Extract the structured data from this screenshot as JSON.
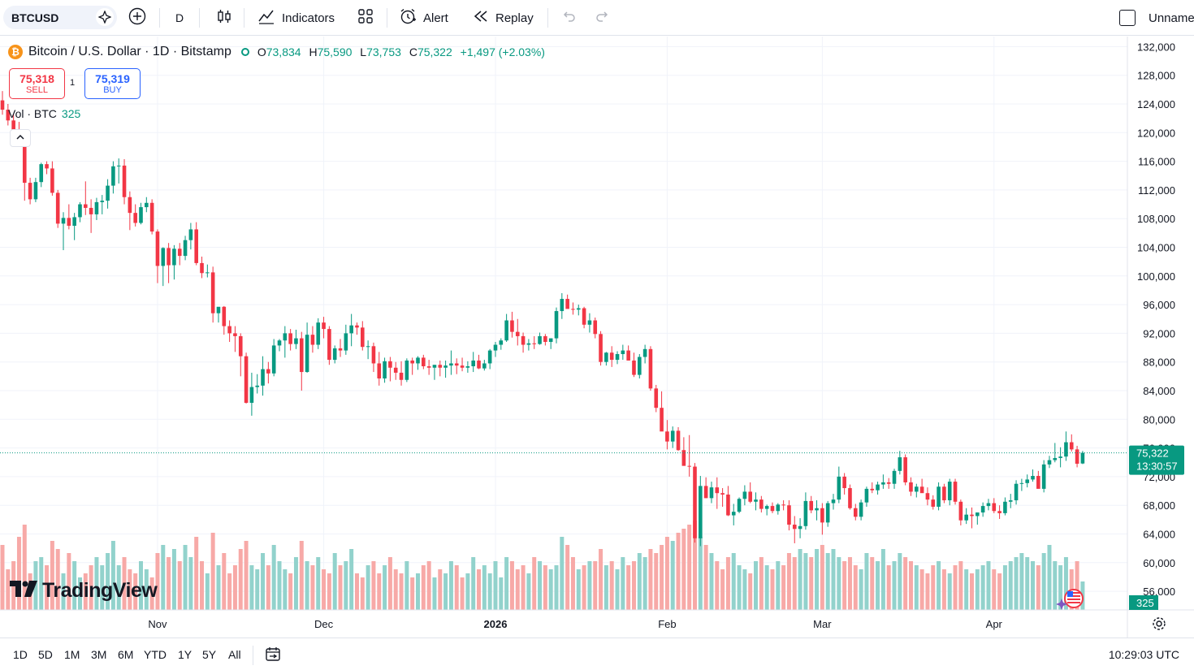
{
  "toolbar": {
    "symbol": "BTCUSD",
    "interval": "D",
    "indicators": "Indicators",
    "alert": "Alert",
    "replay": "Replay",
    "layout_name": "Unname"
  },
  "legend": {
    "title": "Bitcoin / U.S. Dollar · 1D · Bitstamp",
    "o_label": "O",
    "o": "73,834",
    "h_label": "H",
    "h": "75,590",
    "l_label": "L",
    "l": "73,753",
    "c_label": "C",
    "c": "75,322",
    "change": "+1,497 (+2.03%)"
  },
  "trade": {
    "sell_price": "75,318",
    "sell_label": "SELL",
    "spread": "1",
    "buy_price": "75,319",
    "buy_label": "BUY"
  },
  "volume_legend": {
    "label": "Vol · BTC",
    "value": "325"
  },
  "logo_text": "TradingView",
  "price_tag": {
    "price": "75,322",
    "countdown": "13:30:57"
  },
  "volume_tag": "325",
  "bottom": {
    "ranges": [
      "1D",
      "5D",
      "1M",
      "3M",
      "6M",
      "YTD",
      "1Y",
      "5Y",
      "All"
    ],
    "clock": "10:29:03 UTC"
  },
  "colors": {
    "up": "#089981",
    "down": "#f23645",
    "up_vol": "#92d2cc",
    "down_vol": "#f7a9a7"
  },
  "chart_data": {
    "type": "candlestick",
    "title": "Bitcoin / U.S. Dollar · 1D · Bitstamp",
    "y_ticks": [
      132000,
      128000,
      124000,
      120000,
      116000,
      112000,
      108000,
      104000,
      100000,
      96000,
      92000,
      88000,
      84000,
      80000,
      76000,
      72000,
      68000,
      64000,
      60000,
      56000
    ],
    "y_tick_labels": [
      "132,000",
      "128,000",
      "124,000",
      "120,000",
      "116,000",
      "112,000",
      "108,000",
      "104,000",
      "100,000",
      "96,000",
      "92,000",
      "88,000",
      "84,000",
      "80,000",
      "76,000",
      "72,000",
      "68,000",
      "64,000",
      "60,000",
      "56,000"
    ],
    "ylim": [
      55000,
      133000
    ],
    "x_labels": [
      {
        "label": "Nov",
        "index": 28,
        "bold": false
      },
      {
        "label": "Dec",
        "index": 58,
        "bold": false
      },
      {
        "label": "2026",
        "index": 89,
        "bold": true
      },
      {
        "label": "Feb",
        "index": 120,
        "bold": false
      },
      {
        "label": "Mar",
        "index": 148,
        "bold": false
      },
      {
        "label": "Apr",
        "index": 179,
        "bold": false
      }
    ],
    "last_price": 75322,
    "candles": [
      [
        124500,
        125800,
        122500,
        123200,
        16
      ],
      [
        123200,
        124000,
        121000,
        121700,
        10
      ],
      [
        121700,
        122600,
        119800,
        120300,
        12
      ],
      [
        120300,
        121500,
        118400,
        119000,
        18
      ],
      [
        119000,
        119500,
        110500,
        113000,
        21
      ],
      [
        113000,
        113700,
        110000,
        110700,
        9
      ],
      [
        110700,
        113700,
        110300,
        113100,
        12
      ],
      [
        113100,
        115800,
        112400,
        115600,
        13
      ],
      [
        115600,
        116000,
        114200,
        115000,
        11
      ],
      [
        115000,
        116000,
        111200,
        111600,
        17
      ],
      [
        111600,
        112000,
        106700,
        107300,
        15
      ],
      [
        107300,
        108900,
        103600,
        108100,
        9
      ],
      [
        108100,
        110000,
        106500,
        107000,
        14
      ],
      [
        107000,
        108800,
        105000,
        108200,
        12
      ],
      [
        108200,
        110300,
        107500,
        110000,
        8
      ],
      [
        110000,
        113200,
        108500,
        109500,
        9
      ],
      [
        109500,
        110700,
        106000,
        108600,
        11
      ],
      [
        108600,
        110900,
        107800,
        110300,
        13
      ],
      [
        110300,
        111300,
        108600,
        110500,
        11
      ],
      [
        110500,
        113500,
        109400,
        112600,
        14
      ],
      [
        112600,
        116000,
        111500,
        115300,
        17
      ],
      [
        115300,
        116400,
        112900,
        115400,
        11
      ],
      [
        115400,
        116300,
        110000,
        111000,
        13
      ],
      [
        111000,
        111800,
        106400,
        108800,
        10
      ],
      [
        108800,
        110000,
        106900,
        107400,
        9
      ],
      [
        107400,
        110200,
        107200,
        109600,
        12
      ],
      [
        109600,
        111000,
        108900,
        110200,
        10
      ],
      [
        110200,
        110700,
        105800,
        106200,
        8
      ],
      [
        106200,
        106500,
        99000,
        101400,
        14
      ],
      [
        101400,
        104000,
        98600,
        103900,
        16
      ],
      [
        103900,
        104600,
        99000,
        101500,
        13
      ],
      [
        101500,
        104300,
        99500,
        103800,
        15
      ],
      [
        103800,
        104600,
        101500,
        102800,
        12
      ],
      [
        102800,
        105600,
        102200,
        105000,
        16
      ],
      [
        105000,
        107400,
        103700,
        106500,
        13
      ],
      [
        106500,
        107500,
        101500,
        101800,
        18
      ],
      [
        101800,
        102700,
        99700,
        100400,
        12
      ],
      [
        100400,
        101600,
        99800,
        100500,
        9
      ],
      [
        100500,
        101300,
        93500,
        94800,
        19
      ],
      [
        94800,
        95500,
        93500,
        95700,
        11
      ],
      [
        95700,
        95800,
        91800,
        93000,
        14
      ],
      [
        93000,
        93800,
        90800,
        92000,
        9
      ],
      [
        92000,
        93000,
        89400,
        91600,
        11
      ],
      [
        91600,
        92000,
        86000,
        88800,
        15
      ],
      [
        88800,
        89300,
        82200,
        82300,
        17
      ],
      [
        82300,
        86500,
        80500,
        84500,
        11
      ],
      [
        84500,
        86300,
        83600,
        84700,
        10
      ],
      [
        84700,
        88800,
        83300,
        87000,
        14
      ],
      [
        87000,
        88000,
        85000,
        86400,
        11
      ],
      [
        86400,
        91200,
        86000,
        90300,
        16
      ],
      [
        90300,
        91200,
        89500,
        91000,
        12
      ],
      [
        91000,
        93000,
        88600,
        92000,
        10
      ],
      [
        92000,
        92600,
        89600,
        90500,
        9
      ],
      [
        90500,
        92500,
        89800,
        91300,
        13
      ],
      [
        91300,
        92200,
        84000,
        86600,
        17
      ],
      [
        86600,
        93500,
        86500,
        91800,
        12
      ],
      [
        91800,
        93000,
        89300,
        90400,
        11
      ],
      [
        90400,
        94100,
        89800,
        93500,
        13
      ],
      [
        93500,
        94300,
        91300,
        92600,
        10
      ],
      [
        92600,
        93000,
        87600,
        88300,
        9
      ],
      [
        88300,
        90300,
        87800,
        89900,
        14
      ],
      [
        89900,
        91200,
        88700,
        89600,
        11
      ],
      [
        89600,
        93200,
        89000,
        92000,
        12
      ],
      [
        92000,
        94700,
        90200,
        93100,
        15
      ],
      [
        93100,
        93500,
        91800,
        92800,
        9
      ],
      [
        92800,
        93700,
        89600,
        90100,
        8
      ],
      [
        90100,
        91000,
        88400,
        90200,
        11
      ],
      [
        90200,
        90700,
        86600,
        87800,
        12
      ],
      [
        87800,
        89400,
        84700,
        85700,
        9
      ],
      [
        85700,
        88600,
        85100,
        88100,
        11
      ],
      [
        88100,
        88700,
        85300,
        87200,
        13
      ],
      [
        87200,
        88000,
        85500,
        86500,
        10
      ],
      [
        86500,
        88100,
        84700,
        85500,
        9
      ],
      [
        85500,
        88500,
        85200,
        88200,
        12
      ],
      [
        88200,
        88600,
        86200,
        87800,
        8
      ],
      [
        87800,
        88800,
        86900,
        88600,
        9
      ],
      [
        88600,
        89000,
        87000,
        87400,
        11
      ],
      [
        87400,
        88300,
        86200,
        87200,
        12
      ],
      [
        87200,
        87600,
        85500,
        87600,
        8
      ],
      [
        87600,
        88200,
        86000,
        87200,
        10
      ],
      [
        87200,
        88200,
        85800,
        87500,
        9
      ],
      [
        87500,
        89600,
        86200,
        87800,
        12
      ],
      [
        87800,
        88500,
        86300,
        87500,
        11
      ],
      [
        87500,
        88600,
        86700,
        87200,
        8
      ],
      [
        87200,
        88100,
        86500,
        87400,
        9
      ],
      [
        87400,
        89400,
        86600,
        88200,
        13
      ],
      [
        88200,
        89000,
        87000,
        87100,
        10
      ],
      [
        87100,
        88300,
        86800,
        87800,
        11
      ],
      [
        87800,
        89800,
        87000,
        89600,
        9
      ],
      [
        89600,
        90800,
        88700,
        90400,
        12
      ],
      [
        90400,
        91300,
        89700,
        91000,
        8
      ],
      [
        91000,
        94700,
        90800,
        93800,
        13
      ],
      [
        93800,
        95000,
        91400,
        92200,
        12
      ],
      [
        92200,
        94000,
        90300,
        91600,
        10
      ],
      [
        91600,
        92100,
        89300,
        90400,
        11
      ],
      [
        90400,
        91200,
        89600,
        90600,
        9
      ],
      [
        90600,
        91600,
        89800,
        90500,
        13
      ],
      [
        90500,
        92100,
        90400,
        91600,
        12
      ],
      [
        91600,
        91900,
        90300,
        90800,
        11
      ],
      [
        90800,
        91300,
        89800,
        91300,
        10
      ],
      [
        91300,
        95600,
        90600,
        95100,
        11
      ],
      [
        95100,
        97600,
        94000,
        96800,
        18
      ],
      [
        96800,
        97400,
        95800,
        95400,
        16
      ],
      [
        95400,
        96300,
        94600,
        95300,
        13
      ],
      [
        95300,
        96000,
        94500,
        95500,
        10
      ],
      [
        95500,
        95700,
        92700,
        93200,
        11
      ],
      [
        93200,
        94800,
        92100,
        93800,
        12
      ],
      [
        93800,
        94200,
        91300,
        91900,
        12
      ],
      [
        91900,
        92300,
        87500,
        88000,
        15
      ],
      [
        88000,
        89400,
        87500,
        89300,
        11
      ],
      [
        89300,
        90200,
        87300,
        88300,
        12
      ],
      [
        88300,
        89500,
        87700,
        89100,
        10
      ],
      [
        89100,
        90400,
        88300,
        89600,
        13
      ],
      [
        89600,
        90300,
        88200,
        88200,
        11
      ],
      [
        88200,
        89300,
        85900,
        86200,
        12
      ],
      [
        86200,
        89100,
        85700,
        88700,
        14
      ],
      [
        88700,
        90400,
        87800,
        89800,
        13
      ],
      [
        89800,
        90200,
        84000,
        84300,
        15
      ],
      [
        84300,
        84800,
        81000,
        81600,
        14
      ],
      [
        81600,
        83900,
        78400,
        78300,
        16
      ],
      [
        78300,
        79900,
        75800,
        76900,
        18
      ],
      [
        76900,
        79000,
        76000,
        78400,
        17
      ],
      [
        78400,
        78900,
        75600,
        75700,
        19
      ],
      [
        75700,
        77500,
        73800,
        73500,
        20
      ],
      [
        73500,
        77800,
        72000,
        73400,
        21
      ],
      [
        73400,
        73900,
        62800,
        63400,
        22
      ],
      [
        63400,
        72100,
        62300,
        70700,
        18
      ],
      [
        70700,
        71900,
        69000,
        69000,
        16
      ],
      [
        69000,
        71300,
        68300,
        70500,
        14
      ],
      [
        70500,
        71900,
        67500,
        69700,
        12
      ],
      [
        69700,
        70400,
        67800,
        69500,
        10
      ],
      [
        69500,
        70700,
        66500,
        66600,
        13
      ],
      [
        66600,
        68200,
        65200,
        67100,
        14
      ],
      [
        67100,
        69100,
        66900,
        68900,
        11
      ],
      [
        68900,
        70800,
        68000,
        69900,
        10
      ],
      [
        69900,
        71200,
        68300,
        68500,
        9
      ],
      [
        68500,
        69800,
        67300,
        68800,
        12
      ],
      [
        68800,
        69300,
        67000,
        67500,
        13
      ],
      [
        67500,
        68100,
        66600,
        67900,
        11
      ],
      [
        67900,
        68400,
        66900,
        67200,
        10
      ],
      [
        67200,
        68300,
        66700,
        68100,
        12
      ],
      [
        68100,
        68700,
        67300,
        68000,
        11
      ],
      [
        68000,
        68700,
        64500,
        65300,
        14
      ],
      [
        65300,
        66500,
        62700,
        64700,
        13
      ],
      [
        64700,
        66200,
        63400,
        65100,
        15
      ],
      [
        65100,
        69800,
        64600,
        68600,
        14
      ],
      [
        68600,
        69300,
        66900,
        67300,
        13
      ],
      [
        67300,
        68700,
        65900,
        67600,
        15
      ],
      [
        67600,
        68300,
        63900,
        65600,
        16
      ],
      [
        65600,
        68600,
        65000,
        68300,
        14
      ],
      [
        68300,
        69600,
        67400,
        68800,
        15
      ],
      [
        68800,
        73400,
        68300,
        72000,
        13
      ],
      [
        72000,
        72500,
        69500,
        70400,
        12
      ],
      [
        70400,
        70900,
        67400,
        67600,
        13
      ],
      [
        67600,
        68200,
        65900,
        66400,
        11
      ],
      [
        66400,
        68800,
        65900,
        68400,
        10
      ],
      [
        68400,
        70600,
        67800,
        70300,
        14
      ],
      [
        70300,
        71200,
        69700,
        70100,
        13
      ],
      [
        70100,
        71300,
        69500,
        70900,
        12
      ],
      [
        70900,
        72300,
        70300,
        71200,
        15
      ],
      [
        71200,
        71800,
        70300,
        71000,
        11
      ],
      [
        71000,
        73100,
        70300,
        72800,
        12
      ],
      [
        72800,
        75600,
        72300,
        74700,
        14
      ],
      [
        74700,
        75100,
        70800,
        71200,
        13
      ],
      [
        71200,
        71900,
        69300,
        69900,
        12
      ],
      [
        69900,
        71000,
        69100,
        70600,
        11
      ],
      [
        70600,
        71700,
        69800,
        69700,
        10
      ],
      [
        69700,
        70500,
        68000,
        68800,
        9
      ],
      [
        68800,
        69400,
        67400,
        67800,
        11
      ],
      [
        67800,
        71200,
        67300,
        70600,
        12
      ],
      [
        70600,
        71000,
        68300,
        68700,
        10
      ],
      [
        68700,
        71700,
        68000,
        71300,
        9
      ],
      [
        71300,
        71700,
        68100,
        68500,
        11
      ],
      [
        68500,
        68800,
        65200,
        65900,
        12
      ],
      [
        65900,
        67600,
        65400,
        66700,
        10
      ],
      [
        66700,
        67700,
        64800,
        66500,
        9
      ],
      [
        66500,
        67000,
        65300,
        67000,
        10
      ],
      [
        67000,
        68400,
        66400,
        67900,
        11
      ],
      [
        67900,
        68900,
        67300,
        68300,
        12
      ],
      [
        68300,
        69000,
        66900,
        67200,
        10
      ],
      [
        67200,
        68000,
        66100,
        66900,
        9
      ],
      [
        66900,
        69100,
        66600,
        68500,
        11
      ],
      [
        68500,
        69600,
        67600,
        68700,
        12
      ],
      [
        68700,
        71500,
        68100,
        71000,
        13
      ],
      [
        71000,
        71700,
        70000,
        71100,
        14
      ],
      [
        71100,
        72300,
        70500,
        71600,
        13
      ],
      [
        71600,
        73000,
        71300,
        72100,
        12
      ],
      [
        72100,
        72800,
        70500,
        70300,
        11
      ],
      [
        70300,
        74300,
        69800,
        73700,
        14
      ],
      [
        73700,
        74900,
        73200,
        74300,
        16
      ],
      [
        74300,
        76700,
        74000,
        74600,
        12
      ],
      [
        74600,
        76100,
        73300,
        74800,
        11
      ],
      [
        74800,
        78300,
        74200,
        76800,
        13
      ],
      [
        76800,
        77900,
        75500,
        75800,
        10
      ],
      [
        75800,
        76300,
        73300,
        73800,
        12
      ],
      [
        73834,
        75590,
        73753,
        75322,
        7
      ]
    ]
  }
}
